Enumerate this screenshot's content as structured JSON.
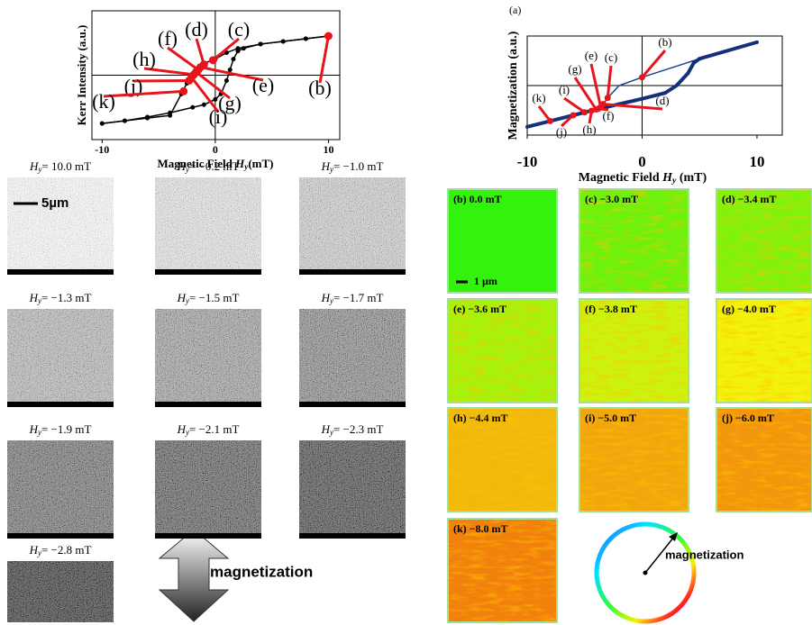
{
  "chart_data": [
    {
      "type": "line",
      "y_label": "Kerr Intensity (a.u.)",
      "x_label": {
        "text": "Magnetic Field ",
        "symbol": "H",
        "sub": "y",
        "unit": "(mT)"
      },
      "xlim": [
        -10.9,
        11
      ],
      "ylim": [
        -1.2,
        1.2
      ],
      "xticks": [
        -10,
        0,
        10
      ],
      "series": [
        {
          "color": "#000000",
          "x": [
            10,
            8,
            6,
            4,
            2,
            1,
            0,
            -1,
            -1.5,
            -2,
            -2.5,
            -3,
            -4,
            -6,
            -8,
            -10
          ],
          "values": [
            0.73,
            0.68,
            0.63,
            0.58,
            0.5,
            0.42,
            0.3,
            0.22,
            0.1,
            0.0,
            -0.15,
            -0.35,
            -0.75,
            -0.8,
            -0.85,
            -0.9
          ]
        },
        {
          "color": "#000000",
          "x": [
            -10,
            -8,
            -6,
            -4,
            -2,
            -1,
            0,
            0.5,
            1,
            1.3,
            1.6,
            2,
            2.5,
            4,
            6,
            8,
            10
          ],
          "values": [
            -0.9,
            -0.85,
            -0.78,
            -0.7,
            -0.6,
            -0.55,
            -0.45,
            -0.35,
            -0.1,
            0.1,
            0.3,
            0.45,
            0.5,
            0.58,
            0.63,
            0.68,
            0.73
          ]
        }
      ],
      "points": {
        "color": "#e8141c",
        "labels": [
          "(b)",
          "(c)",
          "(d)",
          "(e)",
          "(f)",
          "(g)",
          "(h)",
          "(i)",
          "(j)",
          "(k)"
        ],
        "x": [
          10.0,
          -0.2,
          -1.0,
          -1.3,
          -1.5,
          -1.7,
          -1.9,
          -2.1,
          -2.3,
          -2.8
        ],
        "values": [
          0.73,
          0.28,
          0.2,
          0.15,
          0.1,
          0.06,
          0.01,
          -0.04,
          -0.1,
          -0.3
        ]
      }
    },
    {
      "type": "line",
      "title": "(a)",
      "y_label": "Magnetization (a.u.)",
      "x_label": {
        "text": "Magnetic Field ",
        "symbol": "H",
        "sub": "y",
        "unit": " (mT)"
      },
      "xlim": [
        -10,
        12.2
      ],
      "ylim": [
        -1.2,
        1.2
      ],
      "xticks": [
        -10,
        0,
        10
      ],
      "series": [
        {
          "color": "#1f3f8f",
          "x": [
            10,
            5,
            0,
            -2,
            -3,
            -3.5,
            -4,
            -6,
            -8,
            -10
          ],
          "values": [
            1.05,
            0.65,
            0.2,
            0.0,
            -0.3,
            -0.5,
            -0.58,
            -0.72,
            -0.86,
            -1.0
          ]
        },
        {
          "color": "#14307a",
          "x": [
            -10,
            -8,
            -6,
            -4,
            -2,
            0,
            2,
            3,
            4,
            4.5,
            5,
            10
          ],
          "values": [
            -1.0,
            -0.86,
            -0.72,
            -0.58,
            -0.45,
            -0.32,
            -0.18,
            0.0,
            0.3,
            0.55,
            0.65,
            1.05
          ]
        }
      ],
      "points": {
        "color": "#e8141c",
        "labels": [
          "(b)",
          "(c)",
          "(d)",
          "(e)",
          "(f)",
          "(g)",
          "(h)",
          "(i)",
          "(j)",
          "(k)"
        ],
        "x": [
          0.0,
          -3.0,
          -3.4,
          -3.6,
          -3.8,
          -4.0,
          -4.4,
          -5.0,
          -6.0,
          -8.0
        ],
        "values": [
          0.2,
          -0.3,
          -0.45,
          -0.52,
          -0.56,
          -0.58,
          -0.61,
          -0.65,
          -0.72,
          -0.86
        ]
      }
    }
  ],
  "left_panels": {
    "symbol": "H",
    "sub": "y",
    "captions": [
      "= 10.0 mT",
      "= −0.2 mT",
      "= −1.0 mT",
      "= −1.3 mT",
      "= −1.5 mT",
      "= −1.7 mT",
      "= −1.9 mT",
      "= −2.1 mT",
      "= −2.3 mT",
      "= −2.8 mT"
    ],
    "scale_bar": "5µm",
    "arrow_label": "magnetization"
  },
  "right_panels": {
    "captions": [
      "(b) 0.0 mT",
      "(c) −3.0 mT",
      "(d) −3.4 mT",
      "(e) −3.6 mT",
      "(f) −3.8 mT",
      "(g) −4.0 mT",
      "(h) −4.4 mT",
      "(i) −5.0 mT",
      "(j) −6.0 mT",
      "(k) −8.0 mT"
    ],
    "scale_bar": "1 µm",
    "wheel_label": "magnetization"
  }
}
